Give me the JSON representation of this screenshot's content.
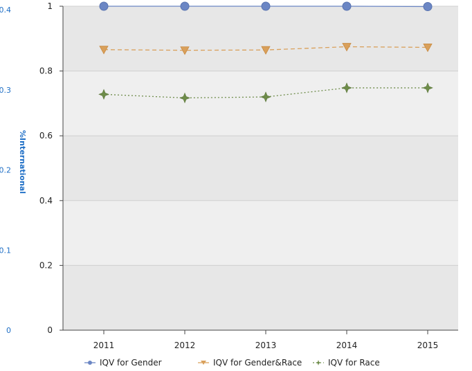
{
  "chart_data": {
    "type": "line",
    "x": [
      "2011",
      "2012",
      "2013",
      "2014",
      "2015"
    ],
    "ylim": [
      0,
      1
    ],
    "yticks": [
      "0",
      "0.2",
      "0.4",
      "0.6",
      "0.8",
      "1"
    ],
    "secondary_axis": {
      "label": "%International",
      "ticks": [
        "0",
        "0.1",
        "0.2",
        "0.3",
        "0.4"
      ],
      "position": "left"
    },
    "series": [
      {
        "name": "IQV for Gender",
        "values": [
          1.0,
          1.0,
          1.0,
          1.0,
          0.999
        ],
        "color": "#6b86c4",
        "marker": "circle",
        "line": "solid"
      },
      {
        "name": "IQV for Gender&Race",
        "values": [
          0.866,
          0.864,
          0.865,
          0.875,
          0.873
        ],
        "color": "#d9a05b",
        "marker": "triangle-down",
        "line": "dashed"
      },
      {
        "name": "IQV for Race",
        "values": [
          0.728,
          0.717,
          0.72,
          0.748,
          0.748
        ],
        "color": "#6e8c4a",
        "marker": "plus",
        "line": "dotted"
      }
    ],
    "grid": true,
    "legend": "bottom",
    "plot_bands": [
      "#e7e7e7",
      "#efefef"
    ]
  }
}
